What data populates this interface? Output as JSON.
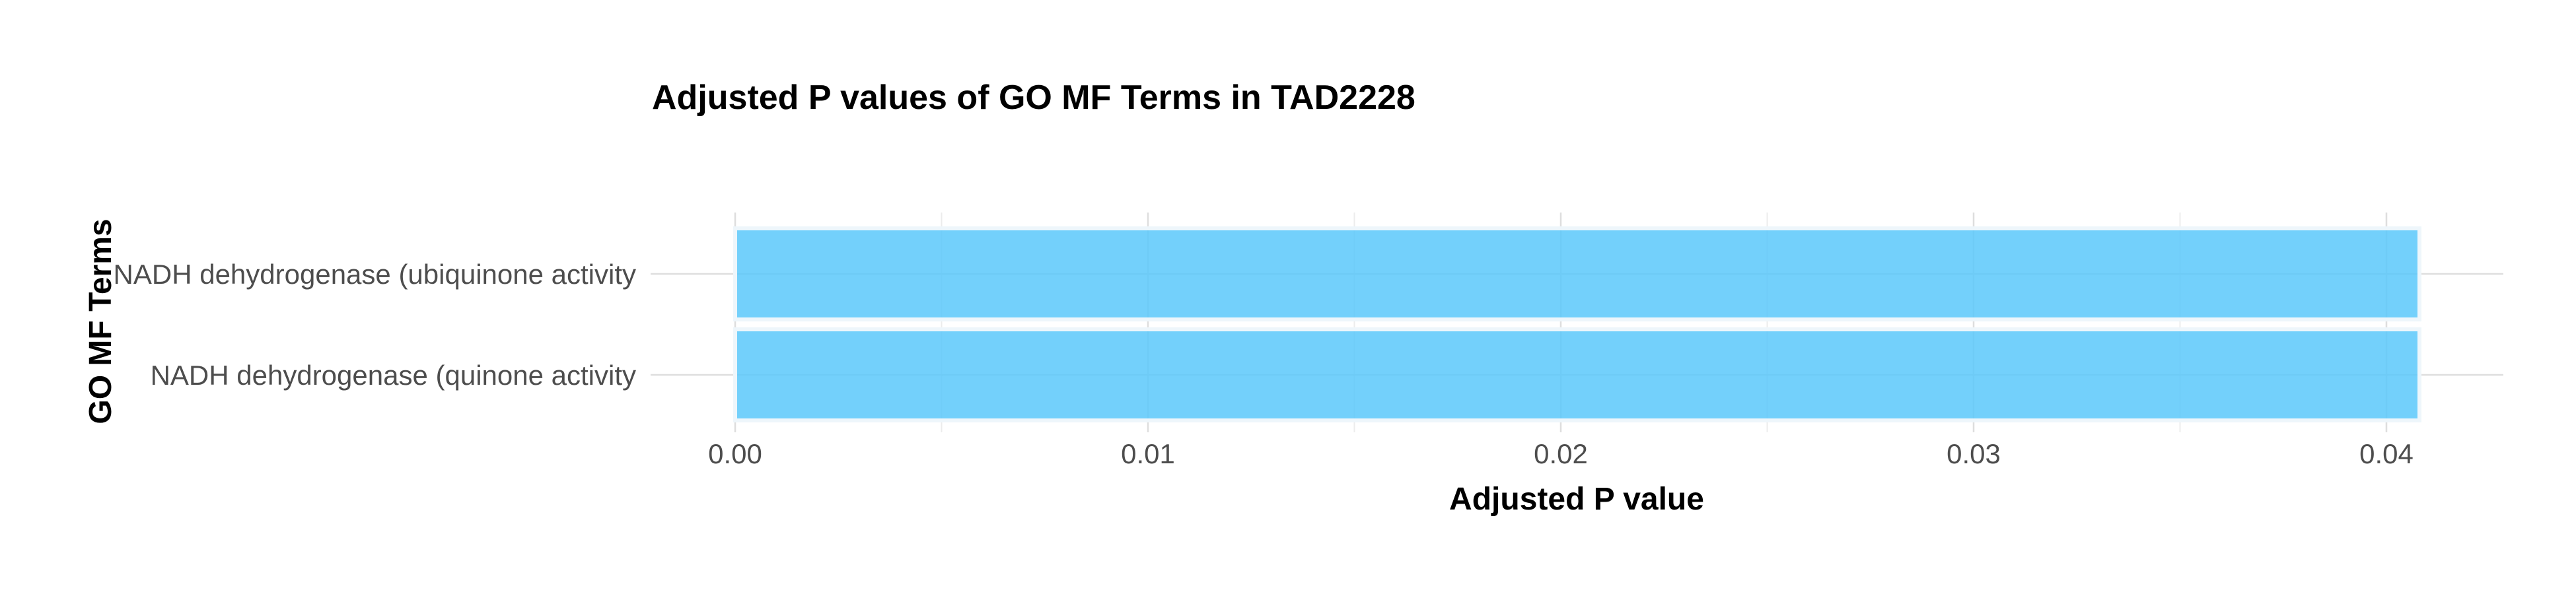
{
  "chart_data": {
    "type": "bar",
    "orientation": "horizontal",
    "title": "Adjusted P values of GO MF Terms in TAD2228",
    "xlabel": "Adjusted P value",
    "ylabel": "GO MF Terms",
    "categories": [
      "NADH dehydrogenase (ubiquinone activity",
      "NADH dehydrogenase (quinone activity"
    ],
    "values": [
      0.0408,
      0.0408
    ],
    "xlim": [
      0,
      0.0428
    ],
    "xticks": [
      0,
      0.01,
      0.02,
      0.03,
      0.04
    ],
    "xtick_labels": [
      "0.00",
      "0.01",
      "0.02",
      "0.03",
      "0.04"
    ],
    "bar_color": "#5BC8FA",
    "grid": true,
    "legend": "none"
  }
}
